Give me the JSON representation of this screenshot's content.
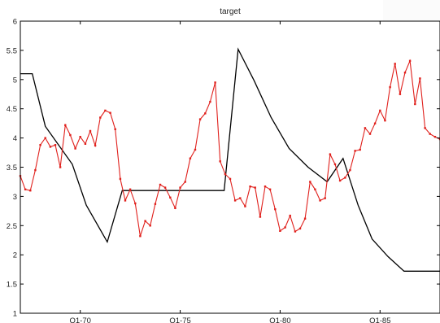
{
  "chart_data": {
    "type": "line",
    "title": "target",
    "xlabel": "",
    "ylabel": "",
    "xlim": [
      1967.0,
      1988.0
    ],
    "ylim": [
      1,
      6
    ],
    "yticks": [
      1,
      1.5,
      2,
      2.5,
      3,
      3.5,
      4,
      4.5,
      5,
      5.5,
      6
    ],
    "xticks": [
      {
        "x": 1970.0,
        "label": "Q1-70"
      },
      {
        "x": 1975.0,
        "label": "Q1-75"
      },
      {
        "x": 1980.0,
        "label": "Q1-80"
      },
      {
        "x": 1985.0,
        "label": "Q1-85"
      }
    ],
    "grid": false,
    "legend": "none",
    "series": [
      {
        "color": "#000000",
        "style": "step",
        "x": [
          1967.0,
          1967.6,
          1967.6,
          1968.25,
          1968.25,
          1969.6,
          1969.6,
          1970.3,
          1970.3,
          1971.35,
          1971.35,
          1972.1,
          1972.1,
          1977.2,
          1977.2,
          1977.9,
          1977.9,
          1978.7,
          1978.7,
          1979.55,
          1979.55,
          1980.45,
          1980.45,
          1981.4,
          1981.4,
          1982.35,
          1982.35,
          1983.15,
          1983.15,
          1983.9,
          1983.9,
          1984.6,
          1984.6,
          1985.4,
          1985.4,
          1986.2,
          1986.2,
          1987.3,
          1987.3,
          1988.0
        ],
        "y": [
          5.1,
          5.1,
          5.1,
          4.2,
          4.2,
          3.55,
          3.55,
          2.85,
          2.85,
          2.22,
          2.22,
          3.1,
          3.1,
          3.1,
          3.1,
          5.52,
          5.52,
          4.98,
          4.98,
          4.35,
          4.35,
          3.82,
          3.82,
          3.5,
          3.5,
          3.25,
          3.25,
          3.65,
          3.65,
          2.85,
          2.85,
          2.27,
          2.27,
          1.97,
          1.97,
          1.72,
          1.72,
          1.72,
          1.72,
          1.72
        ]
      },
      {
        "color": "#e0201c",
        "style": "line",
        "x": [
          1967.0,
          1967.25,
          1967.5,
          1967.75,
          1968.0,
          1968.25,
          1968.5,
          1968.75,
          1969.0,
          1969.25,
          1969.5,
          1969.75,
          1970.0,
          1970.25,
          1970.5,
          1970.75,
          1971.0,
          1971.25,
          1971.5,
          1971.75,
          1972.0,
          1972.25,
          1972.5,
          1972.75,
          1973.0,
          1973.25,
          1973.5,
          1973.75,
          1974.0,
          1974.25,
          1974.5,
          1974.75,
          1975.0,
          1975.25,
          1975.5,
          1975.75,
          1976.0,
          1976.25,
          1976.5,
          1976.75,
          1977.0,
          1977.25,
          1977.5,
          1977.75,
          1978.0,
          1978.25,
          1978.5,
          1978.75,
          1979.0,
          1979.25,
          1979.5,
          1979.75,
          1980.0,
          1980.25,
          1980.5,
          1980.75,
          1981.0,
          1981.25,
          1981.5,
          1981.75,
          1982.0,
          1982.25,
          1982.5,
          1982.75,
          1983.0,
          1983.25,
          1983.5,
          1983.75,
          1984.0,
          1984.25,
          1984.5,
          1984.75,
          1985.0,
          1985.25,
          1985.5,
          1985.75,
          1986.0,
          1986.25,
          1986.5,
          1986.75,
          1987.0,
          1987.25,
          1987.5,
          1987.75,
          1988.0
        ],
        "y": [
          3.35,
          3.12,
          3.1,
          3.45,
          3.88,
          4.0,
          3.85,
          3.88,
          3.5,
          4.22,
          4.05,
          3.82,
          4.02,
          3.9,
          4.12,
          3.87,
          4.35,
          4.47,
          4.43,
          4.15,
          3.3,
          2.93,
          3.12,
          2.88,
          2.32,
          2.58,
          2.5,
          2.87,
          3.2,
          3.15,
          2.98,
          2.8,
          3.15,
          3.25,
          3.65,
          3.8,
          4.32,
          4.42,
          4.62,
          4.95,
          3.6,
          3.38,
          3.3,
          2.93,
          2.97,
          2.83,
          3.17,
          3.15,
          2.65,
          3.17,
          3.12,
          2.78,
          2.41,
          2.47,
          2.67,
          2.4,
          2.45,
          2.62,
          3.25,
          3.12,
          2.93,
          2.97,
          3.72,
          3.55,
          3.27,
          3.32,
          3.45,
          3.78,
          3.8,
          4.17,
          4.07,
          4.25,
          4.47,
          4.3,
          4.87,
          5.27,
          4.75,
          5.12,
          5.32,
          4.58,
          5.02,
          4.17,
          4.07,
          4.02,
          3.98
        ]
      }
    ]
  }
}
